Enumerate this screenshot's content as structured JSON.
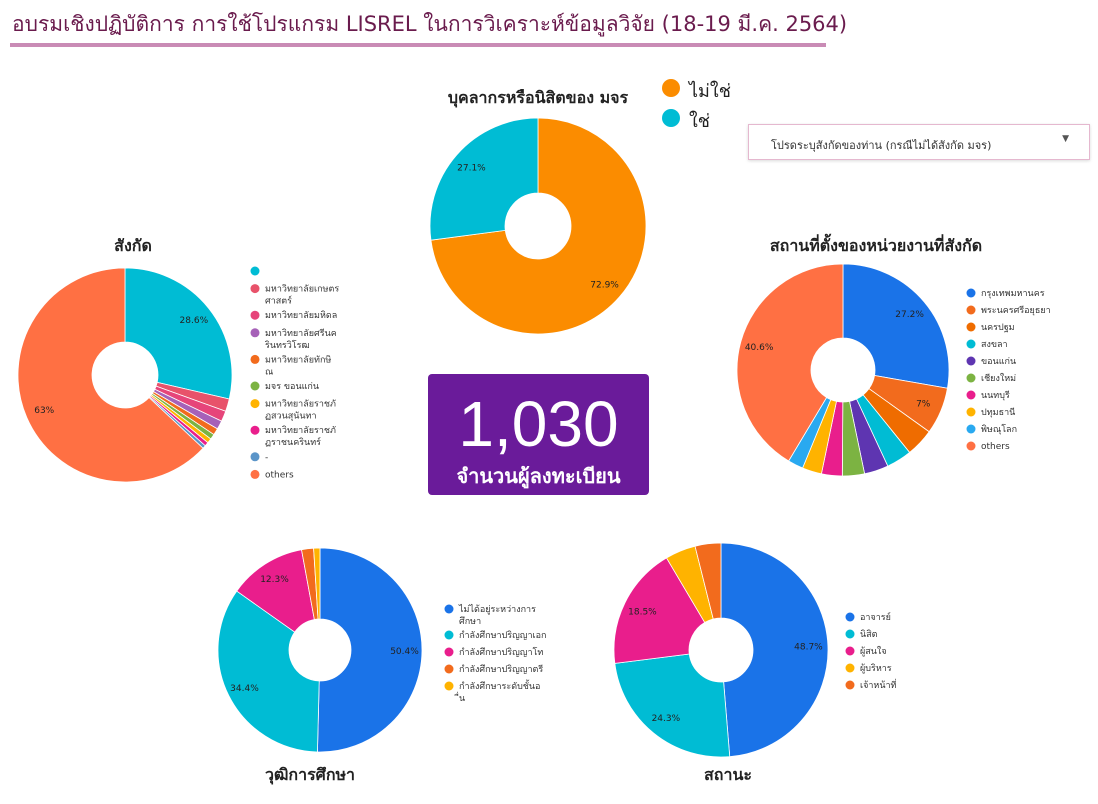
{
  "header": {
    "title": "อบรมเชิงปฏิบัติการ การใช้โปรแกรม LISREL ในการวิเคราะห์ข้อมูลวิจัย (18-19 มี.ค. 2564)"
  },
  "filter": {
    "label": "โปรดระบุสังกัดของท่าน (กรณีไม่ได้สังกัด มจร)",
    "arrow": "▼"
  },
  "kpi": {
    "value": "1,030",
    "label": "จำนวนผู้ลงทะเบียน"
  },
  "colors": {
    "orange": "#fb8c00",
    "teal": "#00bcd4",
    "blue": "#1a73e8",
    "pink": "#e91e8c",
    "coral": "#ff7043",
    "purple": "#5e35b1",
    "green": "#7cb342",
    "amber": "#ffb300",
    "lightblue": "#29a9f0",
    "red": "#e8526a",
    "rose": "#e6457a",
    "violet": "#a661b8",
    "steel": "#5b95c9",
    "darkorange": "#f26b1d"
  },
  "chart_data": [
    {
      "id": "personnel",
      "type": "pie",
      "title": "บุคลากรหรือนิสิตของ มจร",
      "legend_position": "top-right",
      "slices": [
        {
          "label": "ไม่ใช่",
          "value": 72.9,
          "color": "#fb8c00",
          "data_label": "72.9%"
        },
        {
          "label": "ใช่",
          "value": 27.1,
          "color": "#00bcd4",
          "data_label": "27.1%"
        }
      ]
    },
    {
      "id": "affiliation",
      "type": "pie",
      "title": "สังกัด",
      "legend_position": "right",
      "slices": [
        {
          "label": "",
          "value": 28.6,
          "color": "#00bcd4",
          "data_label": "28.6%"
        },
        {
          "label": "มหาวิทยาลัยเกษตรศาสตร์",
          "value": 1.9,
          "color": "#e8526a",
          "data_label": ""
        },
        {
          "label": "มหาวิทยาลัยมหิดล",
          "value": 1.6,
          "color": "#e6457a",
          "data_label": ""
        },
        {
          "label": "มหาวิทยาลัยศรีนครินทรวิโรฒ",
          "value": 1.3,
          "color": "#a661b8",
          "data_label": ""
        },
        {
          "label": "มหาวิทยาลัยทักษิณ",
          "value": 1.0,
          "color": "#f26b1d",
          "data_label": ""
        },
        {
          "label": "มจร ขอนแก่น",
          "value": 0.8,
          "color": "#7cb342",
          "data_label": ""
        },
        {
          "label": "มหาวิทยาลัยราชภัฏสวนสุนันทา",
          "value": 0.7,
          "color": "#ffb300",
          "data_label": ""
        },
        {
          "label": "มหาวิทยาลัยราชภัฏราชนครินทร์",
          "value": 0.6,
          "color": "#e91e8c",
          "data_label": ""
        },
        {
          "label": "-",
          "value": 0.5,
          "color": "#5b95c9",
          "data_label": ""
        },
        {
          "label": "others",
          "value": 63.0,
          "color": "#ff7043",
          "data_label": "63%"
        }
      ]
    },
    {
      "id": "location",
      "type": "pie",
      "title": "สถานที่ตั้งของหน่วยงานที่สังกัด",
      "legend_position": "right",
      "slices": [
        {
          "label": "กรุงเทพมหานคร",
          "value": 27.2,
          "color": "#1a73e8",
          "data_label": "27.2%"
        },
        {
          "label": "พระนครศรีอยุธยา",
          "value": 7.0,
          "color": "#f26b1d",
          "data_label": "7%"
        },
        {
          "label": "นครปฐม",
          "value": 4.2,
          "color": "#ef6c00",
          "data_label": ""
        },
        {
          "label": "สงขลา",
          "value": 3.8,
          "color": "#00bcd4",
          "data_label": ""
        },
        {
          "label": "ขอนแก่น",
          "value": 3.6,
          "color": "#5e35b1",
          "data_label": ""
        },
        {
          "label": "เชียงใหม่",
          "value": 3.3,
          "color": "#7cb342",
          "data_label": ""
        },
        {
          "label": "นนทบุรี",
          "value": 3.1,
          "color": "#e91e8c",
          "data_label": ""
        },
        {
          "label": "ปทุมธานี",
          "value": 2.9,
          "color": "#ffb300",
          "data_label": ""
        },
        {
          "label": "พิษณุโลก",
          "value": 2.3,
          "color": "#29a9f0",
          "data_label": ""
        },
        {
          "label": "others",
          "value": 40.6,
          "color": "#ff7043",
          "data_label": "40.6%"
        }
      ]
    },
    {
      "id": "education",
      "type": "pie",
      "title": "วุฒิการศึกษา",
      "legend_position": "right",
      "slices": [
        {
          "label": "ไม่ได้อยู่ระหว่างการศึกษา",
          "value": 50.4,
          "color": "#1a73e8",
          "data_label": "50.4%"
        },
        {
          "label": "กำลังศึกษาปริญญาเอก",
          "value": 34.4,
          "color": "#00bcd4",
          "data_label": "34.4%"
        },
        {
          "label": "กำลังศึกษาปริญญาโท",
          "value": 12.3,
          "color": "#e91e8c",
          "data_label": "12.3%"
        },
        {
          "label": "กำลังศึกษาปริญญาตรี",
          "value": 1.9,
          "color": "#f26b1d",
          "data_label": ""
        },
        {
          "label": "กำลังศึกษาระดับชั้นอื่น",
          "value": 1.0,
          "color": "#ffb300",
          "data_label": ""
        }
      ]
    },
    {
      "id": "status",
      "type": "pie",
      "title": "สถานะ",
      "legend_position": "right",
      "slices": [
        {
          "label": "อาจารย์",
          "value": 48.7,
          "color": "#1a73e8",
          "data_label": "48.7%"
        },
        {
          "label": "นิสิต",
          "value": 24.3,
          "color": "#00bcd4",
          "data_label": "24.3%"
        },
        {
          "label": "ผู้สนใจ",
          "value": 18.5,
          "color": "#e91e8c",
          "data_label": "18.5%"
        },
        {
          "label": "ผู้บริหาร",
          "value": 4.6,
          "color": "#ffb300",
          "data_label": ""
        },
        {
          "label": "เจ้าหน้าที่",
          "value": 3.9,
          "color": "#f26b1d",
          "data_label": ""
        }
      ]
    }
  ]
}
